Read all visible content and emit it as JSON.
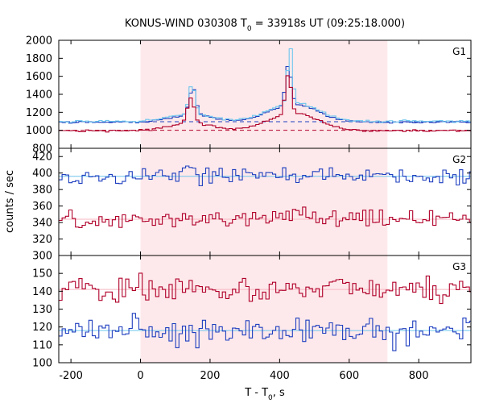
{
  "chart_data": {
    "type": "line",
    "title": "KONUS-WIND 030308 T0 = 33918s UT (09:25:18.000)",
    "title_parts": {
      "pre": "KONUS-WIND 030308 T",
      "sub": "0",
      "post": " = 33918s UT (09:25:18.000)"
    },
    "ylabel": "counts / sec",
    "xlabel_parts": {
      "pre": "T - T",
      "sub": "0",
      "post": ", s"
    },
    "xlim": [
      -235,
      950
    ],
    "x_ticks": [
      -200,
      0,
      200,
      400,
      600,
      800
    ],
    "x_tick_labels": [
      "-200",
      "0",
      "200",
      "400",
      "600",
      "800"
    ],
    "highlight_interval": [
      0,
      710
    ],
    "colors": {
      "blue": "#1f3fbf",
      "red": "#b0002a",
      "cyan": "#6ec6ee",
      "pink": "#f7b6c0",
      "shade": "#fde9eb"
    },
    "panels": [
      {
        "label": "G1",
        "ylim": [
          800,
          2000
        ],
        "y_ticks": [
          800,
          1000,
          1200,
          1400,
          1600,
          1800,
          2000
        ],
        "y_tick_labels": [
          "800",
          "1000",
          "1200",
          "1400",
          "1600",
          "1800",
          "2000"
        ],
        "background_levels": [
          {
            "series": "blue",
            "value": 1095
          },
          {
            "series": "red",
            "value": 1000
          }
        ],
        "series": [
          {
            "color": "blue",
            "base": 1090,
            "noise": 8,
            "peaks": [
              [
                150,
                300,
                10
              ],
              [
                145,
                80,
                60
              ],
              [
                425,
                450,
                8
              ],
              [
                440,
                200,
                70
              ]
            ]
          },
          {
            "color": "cyan",
            "base": 1100,
            "noise": 8,
            "peaks": [
              [
                148,
                330,
                9
              ],
              [
                145,
                80,
                60
              ],
              [
                430,
                620,
                7
              ],
              [
                440,
                210,
                70
              ]
            ]
          },
          {
            "color": "red",
            "base": 995,
            "noise": 8,
            "peaks": [
              [
                145,
                280,
                10
              ],
              [
                145,
                80,
                60
              ],
              [
                425,
                430,
                8
              ],
              [
                440,
                200,
                70
              ]
            ]
          }
        ]
      },
      {
        "label": "G2",
        "ylim": [
          300,
          430
        ],
        "y_ticks": [
          300,
          320,
          340,
          360,
          380,
          400,
          420
        ],
        "y_tick_labels": [
          "300",
          "320",
          "340",
          "360",
          "380",
          "400",
          "420"
        ],
        "background_levels": [
          {
            "series": "cyan",
            "value": 396
          },
          {
            "series": "pink",
            "value": 344
          }
        ],
        "series": [
          {
            "color": "blue",
            "base": 396,
            "noise": 7,
            "peaks": [
              [
                150,
                10,
                20
              ]
            ]
          },
          {
            "color": "red",
            "base": 344,
            "noise": 7,
            "peaks": [
              [
                440,
                6,
                30
              ]
            ]
          }
        ]
      },
      {
        "label": "G3",
        "ylim": [
          100,
          160
        ],
        "y_ticks": [
          100,
          110,
          120,
          130,
          140,
          150
        ],
        "y_tick_labels": [
          "100",
          "110",
          "120",
          "130",
          "140",
          "150"
        ],
        "background_levels": [
          {
            "series": "cyan",
            "value": 118
          },
          {
            "series": "pink",
            "value": 141
          }
        ],
        "series": [
          {
            "color": "blue",
            "base": 118,
            "noise": 5,
            "peaks": []
          },
          {
            "color": "red",
            "base": 141,
            "noise": 5,
            "peaks": []
          }
        ]
      }
    ]
  }
}
